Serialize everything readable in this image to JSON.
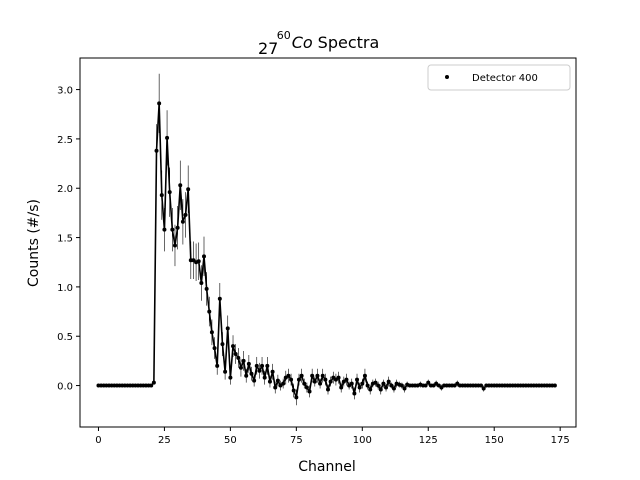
{
  "chart_data": {
    "type": "scatter",
    "title": {
      "superscript": "60",
      "subscript": "27",
      "symbol": "Co",
      "text": "Spectra"
    },
    "xlabel": "Channel",
    "ylabel": "Counts (#/s)",
    "xlim": [
      -7,
      181
    ],
    "ylim": [
      -0.42,
      3.32
    ],
    "xticks": [
      0,
      25,
      50,
      75,
      100,
      125,
      150,
      175
    ],
    "yticks": [
      0.0,
      0.5,
      1.0,
      1.5,
      2.0,
      2.5,
      3.0
    ],
    "xtick_labels": [
      "0",
      "25",
      "50",
      "75",
      "100",
      "125",
      "150",
      "175"
    ],
    "ytick_labels": [
      "0.0",
      "0.5",
      "1.0",
      "1.5",
      "2.0",
      "2.5",
      "3.0"
    ],
    "grid": false,
    "legend_position": "upper-right",
    "series": [
      {
        "name": "Detector 400",
        "color": "#000000",
        "markers": "points",
        "line": true,
        "error_bars": true,
        "x": [
          0,
          1,
          2,
          3,
          4,
          5,
          6,
          7,
          8,
          9,
          10,
          11,
          12,
          13,
          14,
          15,
          16,
          17,
          18,
          19,
          20,
          21,
          22,
          23,
          24,
          25,
          26,
          27,
          28,
          29,
          30,
          31,
          32,
          33,
          34,
          35,
          36,
          37,
          38,
          39,
          40,
          41,
          42,
          43,
          44,
          45,
          46,
          47,
          48,
          49,
          50,
          51,
          52,
          53,
          54,
          55,
          56,
          57,
          58,
          59,
          60,
          61,
          62,
          63,
          64,
          65,
          66,
          67,
          68,
          69,
          70,
          71,
          72,
          73,
          74,
          75,
          76,
          77,
          78,
          79,
          80,
          81,
          82,
          83,
          84,
          85,
          86,
          87,
          88,
          89,
          90,
          91,
          92,
          93,
          94,
          95,
          96,
          97,
          98,
          99,
          100,
          101,
          102,
          103,
          104,
          105,
          106,
          107,
          108,
          109,
          110,
          111,
          112,
          113,
          114,
          115,
          116,
          117,
          118,
          119,
          120,
          121,
          122,
          123,
          124,
          125,
          126,
          127,
          128,
          129,
          130,
          131,
          132,
          133,
          134,
          135,
          136,
          137,
          138,
          139,
          140,
          141,
          142,
          143,
          144,
          145,
          146,
          147,
          148,
          149,
          150,
          151,
          152,
          153,
          154,
          155,
          156,
          157,
          158,
          159,
          160,
          161,
          162,
          163,
          164,
          165,
          166,
          167,
          168,
          169,
          170,
          171,
          172,
          173
        ],
        "y": [
          0,
          0,
          0,
          0,
          0,
          0,
          0,
          0,
          0,
          0,
          0,
          0,
          0,
          0,
          0,
          0,
          0,
          0,
          0,
          0,
          0,
          0.03,
          2.38,
          2.86,
          1.93,
          1.58,
          2.51,
          1.96,
          1.58,
          1.42,
          1.6,
          2.03,
          1.66,
          1.73,
          1.99,
          1.27,
          1.27,
          1.25,
          1.26,
          1.04,
          1.31,
          0.98,
          0.75,
          0.54,
          0.38,
          0.2,
          0.88,
          0.42,
          0.14,
          0.58,
          0.08,
          0.4,
          0.32,
          0.28,
          0.18,
          0.25,
          0.1,
          0.22,
          0.12,
          0.05,
          0.2,
          0.15,
          0.2,
          0.08,
          0.2,
          0.04,
          0.14,
          -0.02,
          0.05,
          0.0,
          0.02,
          0.08,
          0.1,
          0.06,
          -0.05,
          -0.12,
          0.06,
          0.1,
          0.02,
          -0.02,
          -0.06,
          0.1,
          0.04,
          0.1,
          0.02,
          0.1,
          0.06,
          -0.04,
          0.04,
          0.08,
          0.06,
          0.08,
          -0.02,
          0.04,
          0.06,
          0.0,
          0.02,
          -0.08,
          0.06,
          -0.02,
          0.02,
          0.1,
          0.0,
          -0.04,
          0.02,
          0.03,
          0.0,
          -0.04,
          0.02,
          -0.02,
          0.04,
          0.0,
          -0.03,
          0.02,
          0.01,
          0.0,
          -0.03,
          0.01,
          0.0,
          0.0,
          0.0,
          0.0,
          0.01,
          0.0,
          0.0,
          0.03,
          0.0,
          0.0,
          0.02,
          0.0,
          -0.02,
          0.0,
          0.0,
          0.0,
          0.0,
          0.0,
          0.02,
          0.0,
          0.0,
          0.0,
          0.0,
          0.0,
          0.0,
          0.0,
          0.0,
          0.0,
          -0.03,
          0.0,
          0.0,
          0.0,
          0.0,
          0.0,
          0.0,
          0.0,
          0.0,
          0.0,
          0.0,
          0.0,
          0.0,
          0.0,
          0.0,
          0.0,
          0.0,
          0.0,
          0.0,
          0.0,
          0.0,
          0.0,
          0.0,
          0.0,
          0.0,
          0.0,
          0.0,
          0.0
        ],
        "yerr": [
          0,
          0,
          0,
          0,
          0,
          0,
          0,
          0,
          0,
          0,
          0,
          0,
          0,
          0,
          0,
          0,
          0,
          0,
          0,
          0,
          0,
          0.02,
          0.27,
          0.3,
          0.25,
          0.22,
          0.28,
          0.25,
          0.22,
          0.21,
          0.22,
          0.25,
          0.23,
          0.23,
          0.24,
          0.19,
          0.19,
          0.19,
          0.19,
          0.18,
          0.2,
          0.17,
          0.15,
          0.13,
          0.11,
          0.09,
          0.16,
          0.12,
          0.08,
          0.13,
          0.07,
          0.11,
          0.1,
          0.1,
          0.09,
          0.1,
          0.07,
          0.09,
          0.07,
          0.06,
          0.09,
          0.08,
          0.09,
          0.07,
          0.09,
          0.06,
          0.08,
          0.06,
          0.06,
          0.05,
          0.05,
          0.07,
          0.07,
          0.06,
          0.07,
          0.08,
          0.06,
          0.07,
          0.05,
          0.05,
          0.06,
          0.07,
          0.05,
          0.07,
          0.05,
          0.07,
          0.06,
          0.05,
          0.05,
          0.06,
          0.06,
          0.06,
          0.05,
          0.05,
          0.06,
          0.04,
          0.05,
          0.06,
          0.06,
          0.05,
          0.05,
          0.07,
          0.04,
          0.05,
          0.04,
          0.04,
          0.04,
          0.05,
          0.04,
          0.04,
          0.05,
          0.03,
          0.04,
          0.04,
          0.03,
          0.03,
          0.04,
          0.03,
          0.02,
          0.02,
          0.02,
          0.02,
          0.03,
          0.02,
          0.02,
          0.03,
          0.02,
          0.02,
          0.03,
          0.02,
          0.03,
          0.02,
          0.02,
          0.02,
          0.02,
          0.02,
          0.03,
          0.02,
          0.02,
          0.02,
          0.02,
          0.02,
          0.02,
          0.02,
          0.02,
          0.02,
          0.03,
          0.02,
          0.02,
          0.02,
          0.02,
          0.02,
          0.02,
          0.02,
          0.02,
          0.02,
          0.02,
          0.02,
          0.02,
          0.02,
          0.02,
          0.02,
          0.02,
          0.02,
          0.02,
          0.02,
          0.02,
          0.02,
          0.02,
          0.02,
          0.02,
          0.02,
          0.02,
          0.02
        ]
      }
    ]
  }
}
